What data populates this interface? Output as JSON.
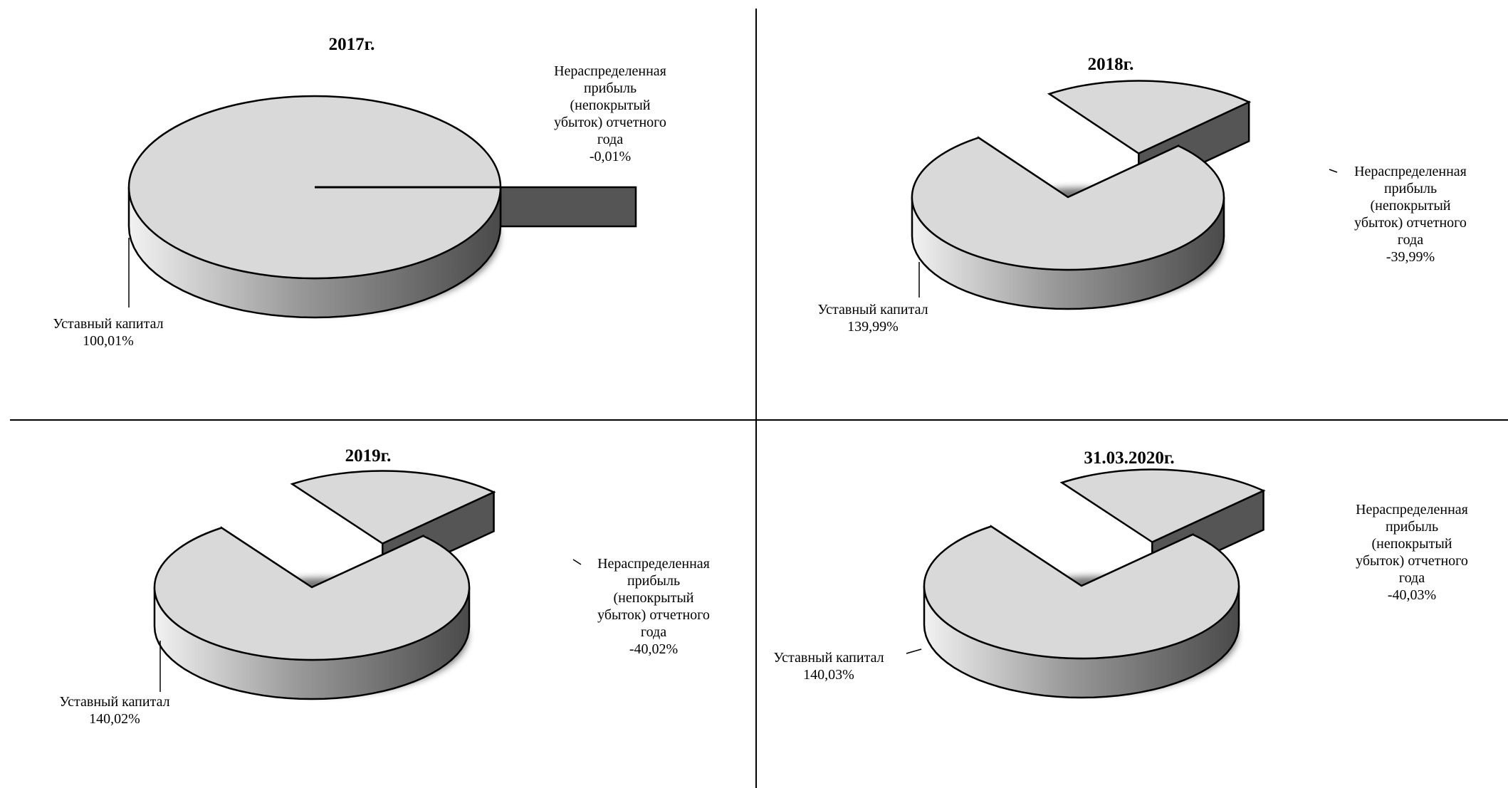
{
  "chart_data": [
    {
      "type": "pie",
      "title": "2017г.",
      "slices": [
        {
          "label_lines": [
            "Уставный капитал"
          ],
          "value": 100.01,
          "value_text": "100,01%"
        },
        {
          "label_lines": [
            "Нераспределенная",
            "прибыль",
            "(непокрытый",
            "убыток) отчетного",
            "года"
          ],
          "value": -0.01,
          "value_text": "-0,01%"
        }
      ]
    },
    {
      "type": "pie",
      "title": "2018г.",
      "slices": [
        {
          "label_lines": [
            "Уставный капитал"
          ],
          "value": 139.99,
          "value_text": "139,99%"
        },
        {
          "label_lines": [
            "Нераспределенная",
            "прибыль",
            "(непокрытый",
            "убыток) отчетного",
            "года"
          ],
          "value": -39.99,
          "value_text": "-39,99%"
        }
      ]
    },
    {
      "type": "pie",
      "title": "2019г.",
      "slices": [
        {
          "label_lines": [
            "Уставный капитал"
          ],
          "value": 140.02,
          "value_text": "140,02%"
        },
        {
          "label_lines": [
            "Нераспределенная",
            "прибыль",
            "(непокрытый",
            "убыток) отчетного",
            "года"
          ],
          "value": -40.02,
          "value_text": "-40,02%"
        }
      ]
    },
    {
      "type": "pie",
      "title": "31.03.2020г.",
      "slices": [
        {
          "label_lines": [
            "Уставный капитал"
          ],
          "value": 140.03,
          "value_text": "140,03%"
        },
        {
          "label_lines": [
            "Нераспределенная",
            "прибыль",
            "(непокрытый",
            "убыток) отчетного",
            "года"
          ],
          "value": -40.03,
          "value_text": "-40,03%"
        }
      ]
    }
  ],
  "colors": {
    "top": "#d9d9d9",
    "side_dark": "#555555",
    "side_light": "#eeeeee",
    "outline": "#000000",
    "divider": "#000000"
  }
}
